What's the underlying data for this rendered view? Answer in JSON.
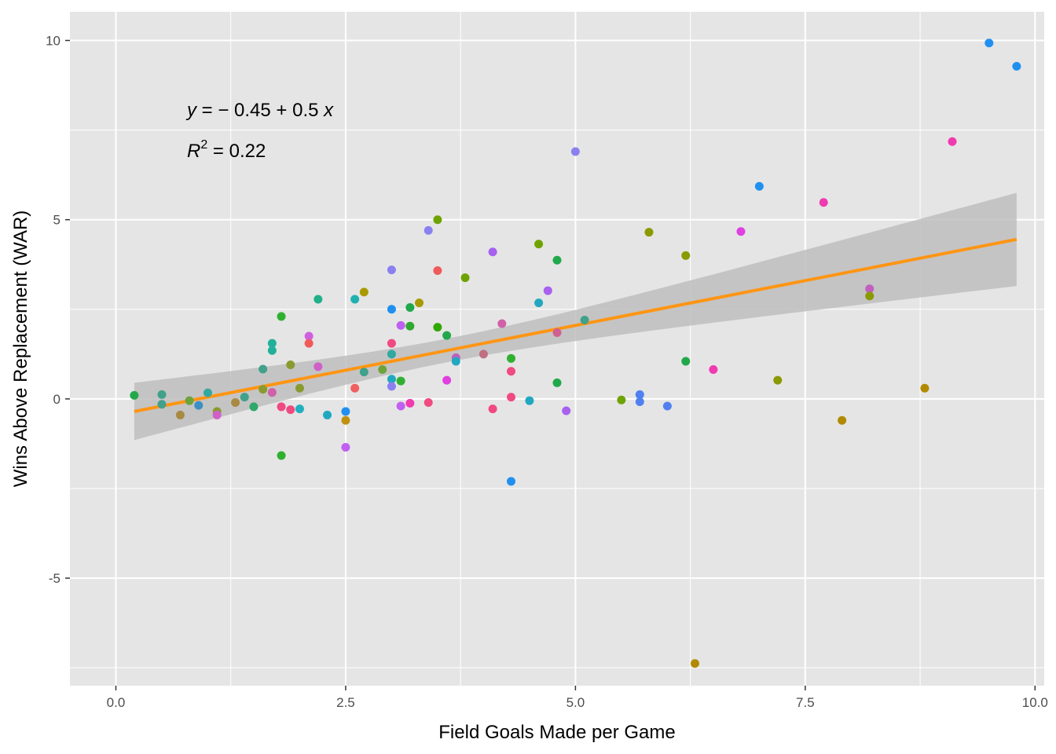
{
  "chart_data": {
    "type": "scatter",
    "title": "",
    "xlabel": "Field Goals Made per Game",
    "ylabel": "Wins Above Replacement (WAR)",
    "xlim": [
      -0.5,
      10.1
    ],
    "ylim": [
      -8.0,
      10.8
    ],
    "x_ticks": [
      0.0,
      2.5,
      5.0,
      7.5,
      10.0
    ],
    "x_tick_labels": [
      "0.0",
      "2.5",
      "5.0",
      "7.5",
      "10.0"
    ],
    "y_ticks": [
      -5,
      0,
      5,
      10
    ],
    "y_tick_labels": [
      "-5",
      "0",
      "5",
      "10"
    ],
    "grid": true,
    "legend": "none",
    "annotation": {
      "equation_parts": [
        "y",
        " = − 0.45 + 0.5 ",
        "x"
      ],
      "r2_parts": [
        "R",
        "2",
        " = 0.22"
      ]
    },
    "trend_line": {
      "intercept": -0.45,
      "slope": 0.5,
      "x_range": [
        0.2,
        9.8
      ],
      "color": "#ff9514",
      "ci_lower": [
        -1.1,
        3.25
      ],
      "ci_upper": [
        0.45,
        5.75
      ]
    },
    "colors": {
      "panel": "#e5e5e5",
      "grid": "#ffffff",
      "ribbon": "#bebebe"
    },
    "points": [
      {
        "x": 0.2,
        "y": 0.1,
        "color": "#21a84a"
      },
      {
        "x": 0.5,
        "y": 0.12,
        "color": "#41a18a"
      },
      {
        "x": 0.5,
        "y": -0.15,
        "color": "#41a18a"
      },
      {
        "x": 0.7,
        "y": -0.45,
        "color": "#a88a42"
      },
      {
        "x": 0.8,
        "y": -0.05,
        "color": "#6ea33c"
      },
      {
        "x": 0.9,
        "y": -0.18,
        "color": "#3c8fc2"
      },
      {
        "x": 1.0,
        "y": 0.17,
        "color": "#31a8a0"
      },
      {
        "x": 1.1,
        "y": -0.35,
        "color": "#8a9a30"
      },
      {
        "x": 1.1,
        "y": -0.45,
        "color": "#d060c8"
      },
      {
        "x": 1.3,
        "y": -0.1,
        "color": "#a88a42"
      },
      {
        "x": 1.4,
        "y": 0.05,
        "color": "#41a18a"
      },
      {
        "x": 1.5,
        "y": -0.22,
        "color": "#2fa86a"
      },
      {
        "x": 1.6,
        "y": 0.83,
        "color": "#41a18a"
      },
      {
        "x": 1.6,
        "y": 0.27,
        "color": "#8a9a30"
      },
      {
        "x": 1.7,
        "y": 1.55,
        "color": "#21b09a"
      },
      {
        "x": 1.7,
        "y": 1.35,
        "color": "#21b09a"
      },
      {
        "x": 1.7,
        "y": 0.18,
        "color": "#d060a8"
      },
      {
        "x": 1.8,
        "y": 2.3,
        "color": "#30b030"
      },
      {
        "x": 1.8,
        "y": -0.22,
        "color": "#f04a80"
      },
      {
        "x": 1.8,
        "y": -1.58,
        "color": "#30b030"
      },
      {
        "x": 1.9,
        "y": 0.95,
        "color": "#8a9a30"
      },
      {
        "x": 1.9,
        "y": -0.3,
        "color": "#f04a80"
      },
      {
        "x": 2.0,
        "y": 0.3,
        "color": "#8a9a30"
      },
      {
        "x": 2.0,
        "y": -0.28,
        "color": "#21b0c0"
      },
      {
        "x": 2.1,
        "y": 1.75,
        "color": "#d060e0"
      },
      {
        "x": 2.1,
        "y": 1.55,
        "color": "#f05a5a"
      },
      {
        "x": 2.2,
        "y": 2.78,
        "color": "#21b08a"
      },
      {
        "x": 2.2,
        "y": 0.9,
        "color": "#d060c8"
      },
      {
        "x": 2.3,
        "y": -0.45,
        "color": "#21a8c0"
      },
      {
        "x": 2.5,
        "y": -0.35,
        "color": "#2090f0"
      },
      {
        "x": 2.5,
        "y": -0.6,
        "color": "#c09010"
      },
      {
        "x": 2.5,
        "y": -1.35,
        "color": "#c060f0"
      },
      {
        "x": 2.6,
        "y": 2.78,
        "color": "#21b0b0"
      },
      {
        "x": 2.6,
        "y": 0.3,
        "color": "#f06060"
      },
      {
        "x": 2.7,
        "y": 2.98,
        "color": "#a89a00"
      },
      {
        "x": 2.7,
        "y": 0.75,
        "color": "#41a18a"
      },
      {
        "x": 2.9,
        "y": 0.82,
        "color": "#6ea33c"
      },
      {
        "x": 3.0,
        "y": 3.6,
        "color": "#8a80f0"
      },
      {
        "x": 3.0,
        "y": 2.5,
        "color": "#2090f0"
      },
      {
        "x": 3.0,
        "y": 1.55,
        "color": "#f04a80"
      },
      {
        "x": 3.0,
        "y": 1.25,
        "color": "#31a8a0"
      },
      {
        "x": 3.0,
        "y": 0.55,
        "color": "#21a8c0"
      },
      {
        "x": 3.0,
        "y": 0.35,
        "color": "#8a80f0"
      },
      {
        "x": 3.1,
        "y": 2.05,
        "color": "#c060f0"
      },
      {
        "x": 3.1,
        "y": 0.5,
        "color": "#30b030"
      },
      {
        "x": 3.1,
        "y": -0.2,
        "color": "#c060f0"
      },
      {
        "x": 3.2,
        "y": 2.55,
        "color": "#21a84a"
      },
      {
        "x": 3.2,
        "y": 2.03,
        "color": "#30a830"
      },
      {
        "x": 3.2,
        "y": -0.12,
        "color": "#f03ab0"
      },
      {
        "x": 3.3,
        "y": 2.68,
        "color": "#a89a00"
      },
      {
        "x": 3.4,
        "y": 4.7,
        "color": "#8a80f0"
      },
      {
        "x": 3.4,
        "y": -0.1,
        "color": "#f04a80"
      },
      {
        "x": 3.5,
        "y": 5.0,
        "color": "#6ea300"
      },
      {
        "x": 3.5,
        "y": 3.58,
        "color": "#f05a5a"
      },
      {
        "x": 3.5,
        "y": 2.0,
        "color": "#30a800"
      },
      {
        "x": 3.6,
        "y": 1.77,
        "color": "#21a84a"
      },
      {
        "x": 3.6,
        "y": 0.52,
        "color": "#e040e0"
      },
      {
        "x": 3.7,
        "y": 1.15,
        "color": "#c060c0"
      },
      {
        "x": 3.7,
        "y": 1.05,
        "color": "#21a8c0"
      },
      {
        "x": 3.8,
        "y": 3.38,
        "color": "#6ea300"
      },
      {
        "x": 4.0,
        "y": 1.25,
        "color": "#c07080"
      },
      {
        "x": 4.1,
        "y": 4.1,
        "color": "#a860f0"
      },
      {
        "x": 4.1,
        "y": -0.28,
        "color": "#f04a80"
      },
      {
        "x": 4.2,
        "y": 2.1,
        "color": "#d060a8"
      },
      {
        "x": 4.3,
        "y": 1.13,
        "color": "#30b030"
      },
      {
        "x": 4.3,
        "y": 0.77,
        "color": "#f04a80"
      },
      {
        "x": 4.3,
        "y": 0.05,
        "color": "#f04a80"
      },
      {
        "x": 4.3,
        "y": -2.3,
        "color": "#2090f0"
      },
      {
        "x": 4.5,
        "y": -0.05,
        "color": "#21a8c0"
      },
      {
        "x": 4.6,
        "y": 4.32,
        "color": "#6ea300"
      },
      {
        "x": 4.6,
        "y": 2.68,
        "color": "#21a8c0"
      },
      {
        "x": 4.7,
        "y": 3.02,
        "color": "#a860f0"
      },
      {
        "x": 4.8,
        "y": 3.87,
        "color": "#21a84a"
      },
      {
        "x": 4.8,
        "y": 1.85,
        "color": "#d06090"
      },
      {
        "x": 4.8,
        "y": 0.45,
        "color": "#21a84a"
      },
      {
        "x": 4.9,
        "y": -0.33,
        "color": "#a860f0"
      },
      {
        "x": 5.0,
        "y": 6.9,
        "color": "#8a80f0"
      },
      {
        "x": 5.1,
        "y": 2.2,
        "color": "#41a18a"
      },
      {
        "x": 5.5,
        "y": -0.03,
        "color": "#6ea300"
      },
      {
        "x": 5.7,
        "y": 0.12,
        "color": "#5080f0"
      },
      {
        "x": 5.7,
        "y": -0.08,
        "color": "#5080f0"
      },
      {
        "x": 5.8,
        "y": 4.65,
        "color": "#8a9a00"
      },
      {
        "x": 6.0,
        "y": -0.2,
        "color": "#5080f0"
      },
      {
        "x": 6.2,
        "y": 4.0,
        "color": "#8a9a00"
      },
      {
        "x": 6.2,
        "y": 1.05,
        "color": "#21a84a"
      },
      {
        "x": 6.3,
        "y": -7.38,
        "color": "#b08a00"
      },
      {
        "x": 6.5,
        "y": 0.82,
        "color": "#f03ab0"
      },
      {
        "x": 6.8,
        "y": 4.67,
        "color": "#e040e0"
      },
      {
        "x": 7.0,
        "y": 5.93,
        "color": "#2090f0"
      },
      {
        "x": 7.2,
        "y": 0.52,
        "color": "#8a9a00"
      },
      {
        "x": 7.7,
        "y": 5.48,
        "color": "#f03ab0"
      },
      {
        "x": 7.9,
        "y": -0.6,
        "color": "#b08a00"
      },
      {
        "x": 8.2,
        "y": 3.07,
        "color": "#c060c0"
      },
      {
        "x": 8.2,
        "y": 2.87,
        "color": "#8a9a00"
      },
      {
        "x": 8.8,
        "y": 0.3,
        "color": "#b08a00"
      },
      {
        "x": 9.1,
        "y": 7.18,
        "color": "#f03ab0"
      },
      {
        "x": 9.5,
        "y": 9.93,
        "color": "#2090f0"
      },
      {
        "x": 9.8,
        "y": 9.28,
        "color": "#2090f0"
      }
    ]
  }
}
